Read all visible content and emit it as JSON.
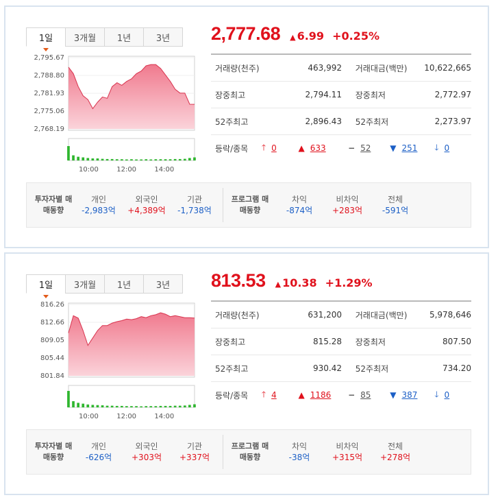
{
  "panels": [
    {
      "tabs": [
        "1일",
        "3개월",
        "1년",
        "3년"
      ],
      "price": "2,777.68",
      "change": "6.99",
      "rate": "+0.25%",
      "stats": {
        "volume_label": "거래량(천주)",
        "volume": "463,992",
        "amount_label": "거래대금(백만)",
        "amount": "10,622,665",
        "day_high_label": "장중최고",
        "day_high": "2,794.11",
        "day_low_label": "장중최저",
        "day_low": "2,772.97",
        "wk52_high_label": "52주최고",
        "wk52_high": "2,896.43",
        "wk52_low_label": "52주최저",
        "wk52_low": "2,273.97"
      },
      "updown": {
        "label": "등락/종목",
        "upper": "0",
        "rise": "633",
        "flat": "52",
        "fall": "251",
        "lower": "0"
      },
      "investor": {
        "head": "투자자별 매매동향",
        "individual_label": "개인",
        "individual": "-2,983억",
        "foreign_label": "외국인",
        "foreign": "+4,389억",
        "institution_label": "기관",
        "institution": "-1,738억",
        "program_head": "프로그램 매매동향",
        "arb_label": "차익",
        "arb": "-874억",
        "nonarb_label": "비차익",
        "nonarb": "+283억",
        "total_label": "전체",
        "total": "-591억"
      },
      "chart_data": {
        "type": "area",
        "y_ticks": [
          "2,795.67",
          "2,788.80",
          "2,781.93",
          "2,775.06",
          "2,768.19"
        ],
        "ylim": [
          2768.19,
          2795.67
        ],
        "x_ticks": [
          "10:00",
          "12:00",
          "14:00"
        ],
        "x": [
          "09:00",
          "09:15",
          "09:30",
          "09:45",
          "10:00",
          "10:15",
          "10:30",
          "10:45",
          "11:00",
          "11:15",
          "11:30",
          "11:45",
          "12:00",
          "12:15",
          "12:30",
          "12:45",
          "13:00",
          "13:15",
          "13:30",
          "13:45",
          "14:00",
          "14:15",
          "14:30",
          "14:45",
          "15:00",
          "15:15",
          "15:30"
        ],
        "values": [
          2792.0,
          2789.5,
          2784.5,
          2781.0,
          2779.5,
          2776.0,
          2778.5,
          2780.5,
          2780.0,
          2784.5,
          2786.0,
          2785.0,
          2786.5,
          2787.5,
          2789.5,
          2790.5,
          2792.5,
          2793.0,
          2793.0,
          2791.5,
          2789.0,
          2786.5,
          2783.5,
          2782.0,
          2782.0,
          2777.7,
          2777.68
        ],
        "volume": [
          0.7,
          0.25,
          0.18,
          0.15,
          0.12,
          0.1,
          0.1,
          0.08,
          0.07,
          0.07,
          0.06,
          0.06,
          0.05,
          0.06,
          0.05,
          0.05,
          0.06,
          0.05,
          0.06,
          0.06,
          0.06,
          0.06,
          0.07,
          0.07,
          0.08,
          0.12,
          0.15
        ]
      }
    },
    {
      "tabs": [
        "1일",
        "3개월",
        "1년",
        "3년"
      ],
      "price": "813.53",
      "change": "10.38",
      "rate": "+1.29%",
      "stats": {
        "volume_label": "거래량(천주)",
        "volume": "631,200",
        "amount_label": "거래대금(백만)",
        "amount": "5,978,646",
        "day_high_label": "장중최고",
        "day_high": "815.28",
        "day_low_label": "장중최저",
        "day_low": "807.50",
        "wk52_high_label": "52주최고",
        "wk52_high": "930.42",
        "wk52_low_label": "52주최저",
        "wk52_low": "734.20"
      },
      "updown": {
        "label": "등락/종목",
        "upper": "4",
        "rise": "1186",
        "flat": "85",
        "fall": "387",
        "lower": "0"
      },
      "investor": {
        "head": "투자자별 매매동향",
        "individual_label": "개인",
        "individual": "-626억",
        "foreign_label": "외국인",
        "foreign": "+303억",
        "institution_label": "기관",
        "institution": "+337억",
        "program_head": "프로그램 매매동향",
        "arb_label": "차익",
        "arb": "-38억",
        "nonarb_label": "비차익",
        "nonarb": "+315억",
        "total_label": "전체",
        "total": "+278억"
      },
      "chart_data": {
        "type": "area",
        "y_ticks": [
          "816.26",
          "812.66",
          "809.05",
          "805.44",
          "801.84"
        ],
        "ylim": [
          801.84,
          816.26
        ],
        "x_ticks": [
          "10:00",
          "12:00",
          "14:00"
        ],
        "x": [
          "09:00",
          "09:15",
          "09:30",
          "09:45",
          "10:00",
          "10:15",
          "10:30",
          "10:45",
          "11:00",
          "11:15",
          "11:30",
          "11:45",
          "12:00",
          "12:15",
          "12:30",
          "12:45",
          "13:00",
          "13:15",
          "13:30",
          "13:45",
          "14:00",
          "14:15",
          "14:30",
          "14:45",
          "15:00",
          "15:15",
          "15:30"
        ],
        "values": [
          810.5,
          814.0,
          813.5,
          811.0,
          808.0,
          809.5,
          811.0,
          812.0,
          812.0,
          812.5,
          812.8,
          813.0,
          813.3,
          813.2,
          813.4,
          813.8,
          813.6,
          814.0,
          814.2,
          814.6,
          814.3,
          813.8,
          814.0,
          813.8,
          813.6,
          813.6,
          813.53
        ],
        "volume": [
          0.8,
          0.3,
          0.22,
          0.18,
          0.14,
          0.12,
          0.11,
          0.1,
          0.08,
          0.08,
          0.07,
          0.07,
          0.06,
          0.06,
          0.06,
          0.05,
          0.06,
          0.06,
          0.06,
          0.07,
          0.07,
          0.07,
          0.08,
          0.08,
          0.09,
          0.12,
          0.15
        ]
      }
    }
  ],
  "colors": {
    "up": "#e0111c",
    "down": "#1c5fc6",
    "area": "#f5a0ae",
    "volume": "#2fb62f"
  }
}
